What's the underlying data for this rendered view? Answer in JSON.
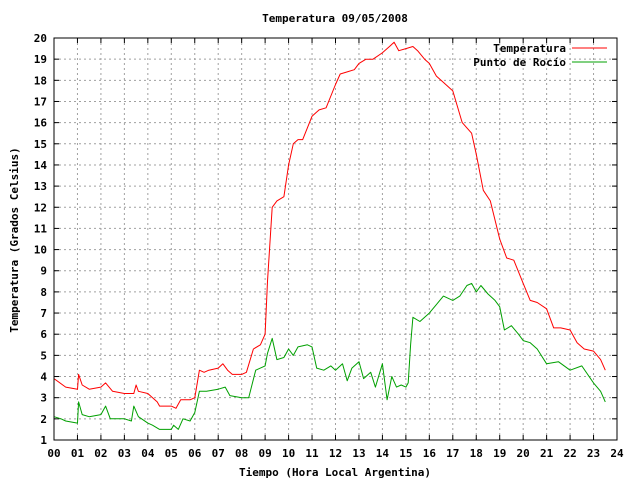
{
  "chart_data": {
    "type": "line",
    "title": "Temperatura 09/05/2008",
    "xlabel": "Tiempo (Hora Local Argentina)",
    "ylabel": "Temperatura (Grados Celsius)",
    "xlim": [
      0,
      24
    ],
    "ylim": [
      1,
      20
    ],
    "xticks": [
      "00",
      "01",
      "02",
      "03",
      "04",
      "05",
      "06",
      "07",
      "08",
      "09",
      "10",
      "11",
      "12",
      "13",
      "14",
      "15",
      "16",
      "17",
      "18",
      "19",
      "20",
      "21",
      "22",
      "23",
      "24"
    ],
    "yticks": [
      "1",
      "2",
      "3",
      "4",
      "5",
      "6",
      "7",
      "8",
      "9",
      "10",
      "11",
      "12",
      "13",
      "14",
      "15",
      "16",
      "17",
      "18",
      "19",
      "20"
    ],
    "grid": true,
    "legend_position": "top-right",
    "colors": {
      "temperatura": "#ff0000",
      "punto_de_rocio": "#00a000"
    },
    "series": [
      {
        "name": "Temperatura",
        "x": [
          0,
          0.5,
          1,
          1.05,
          1.2,
          1.5,
          2,
          2.2,
          2.5,
          3,
          3.4,
          3.5,
          3.6,
          4,
          4.4,
          4.5,
          5,
          5.2,
          5.4,
          5.8,
          6,
          6.2,
          6.4,
          6.6,
          7,
          7.2,
          7.4,
          7.6,
          8,
          8.2,
          8.5,
          8.8,
          9,
          9.1,
          9.3,
          9.5,
          9.8,
          10,
          10.2,
          10.4,
          10.6,
          11,
          11.3,
          11.6,
          12,
          12.2,
          12.5,
          12.8,
          13,
          13.3,
          13.6,
          14,
          14.3,
          14.5,
          14.7,
          15,
          15.3,
          15.5,
          15.8,
          16,
          16.3,
          16.6,
          17,
          17.4,
          17.8,
          18,
          18.3,
          18.6,
          19,
          19.3,
          19.6,
          20,
          20.3,
          20.6,
          21,
          21.3,
          21.6,
          22,
          22.3,
          22.6,
          23,
          23.3,
          23.5
        ],
        "values": [
          3.9,
          3.5,
          3.4,
          4.1,
          3.6,
          3.4,
          3.5,
          3.7,
          3.3,
          3.2,
          3.2,
          3.6,
          3.3,
          3.2,
          2.8,
          2.6,
          2.6,
          2.5,
          2.9,
          2.9,
          3.0,
          4.3,
          4.2,
          4.3,
          4.4,
          4.6,
          4.3,
          4.1,
          4.1,
          4.2,
          5.3,
          5.5,
          6.0,
          8.5,
          12.0,
          12.3,
          12.5,
          14.0,
          15.0,
          15.2,
          15.2,
          16.3,
          16.6,
          16.7,
          17.8,
          18.3,
          18.4,
          18.5,
          18.8,
          19.0,
          19.0,
          19.3,
          19.6,
          19.8,
          19.4,
          19.5,
          19.6,
          19.4,
          19.0,
          18.8,
          18.2,
          17.9,
          17.5,
          16.0,
          15.5,
          14.5,
          12.8,
          12.3,
          10.5,
          9.6,
          9.5,
          8.4,
          7.6,
          7.5,
          7.2,
          6.3,
          6.3,
          6.2,
          5.6,
          5.3,
          5.2,
          4.8,
          4.3
        ]
      },
      {
        "name": "Punto de Rocío",
        "x": [
          0,
          0.3,
          0.5,
          1,
          1.05,
          1.2,
          1.5,
          2,
          2.2,
          2.4,
          2.7,
          3,
          3.3,
          3.4,
          3.6,
          4,
          4.2,
          4.5,
          5,
          5.1,
          5.3,
          5.5,
          5.8,
          6,
          6.2,
          6.5,
          7,
          7.3,
          7.5,
          8,
          8.3,
          8.6,
          9,
          9.1,
          9.3,
          9.5,
          9.8,
          10,
          10.2,
          10.4,
          10.8,
          11,
          11.2,
          11.5,
          11.8,
          12,
          12.3,
          12.5,
          12.7,
          13,
          13.2,
          13.5,
          13.7,
          14,
          14.2,
          14.4,
          14.6,
          14.8,
          15,
          15.1,
          15.2,
          15.3,
          15.6,
          16,
          16.3,
          16.6,
          17,
          17.3,
          17.6,
          17.8,
          18,
          18.2,
          18.5,
          18.8,
          19,
          19.2,
          19.5,
          19.8,
          20,
          20.3,
          20.6,
          21,
          21.5,
          22,
          22.5,
          23,
          23.3,
          23.5
        ],
        "values": [
          2.1,
          2.0,
          1.9,
          1.8,
          2.8,
          2.2,
          2.1,
          2.2,
          2.6,
          2.0,
          2.0,
          2.0,
          1.9,
          2.6,
          2.1,
          1.8,
          1.7,
          1.5,
          1.5,
          1.7,
          1.5,
          2.0,
          1.9,
          2.3,
          3.3,
          3.3,
          3.4,
          3.5,
          3.1,
          3.0,
          3.0,
          4.3,
          4.5,
          5.1,
          5.8,
          4.8,
          4.9,
          5.3,
          5.0,
          5.4,
          5.5,
          5.4,
          4.4,
          4.3,
          4.5,
          4.3,
          4.6,
          3.8,
          4.4,
          4.7,
          3.9,
          4.2,
          3.5,
          4.6,
          2.9,
          4.0,
          3.5,
          3.6,
          3.5,
          3.7,
          5.5,
          6.8,
          6.6,
          7.0,
          7.4,
          7.8,
          7.6,
          7.8,
          8.3,
          8.4,
          8.0,
          8.3,
          7.9,
          7.6,
          7.3,
          6.2,
          6.4,
          6.0,
          5.7,
          5.6,
          5.3,
          4.6,
          4.7,
          4.3,
          4.5,
          3.7,
          3.3,
          2.8
        ]
      }
    ]
  }
}
